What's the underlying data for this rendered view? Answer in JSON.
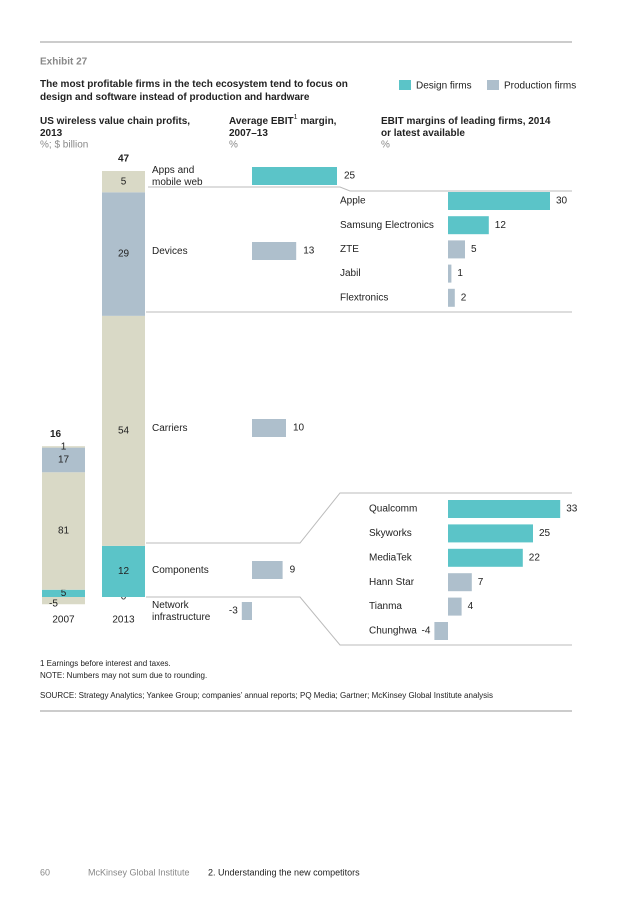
{
  "exhibit": "Exhibit 27",
  "title": [
    "The most profitable firms in the tech ecosystem tend to focus on",
    "design and software instead of production and hardware"
  ],
  "legend": [
    {
      "name": "Design firms",
      "color": "#5bc4c8"
    },
    {
      "name": "Production firms",
      "color": "#aebfcc"
    }
  ],
  "profits": {
    "heading": [
      "US wireless value chain profits,",
      "2013"
    ],
    "unit": "%; $ billion",
    "segments": [
      [
        "Apps and",
        "mobile web"
      ],
      [
        "Devices"
      ],
      [
        "Carriers"
      ],
      [
        "Components"
      ],
      [
        "Network",
        "infrastructure"
      ]
    ],
    "colors": [
      "#d9d9c6",
      "#aebfcc",
      "#d9d9c6",
      "#5bc4c8",
      "#d9d9c6"
    ],
    "years": [
      {
        "label": "2007",
        "total": 16,
        "values": [
          1,
          17,
          81,
          5,
          -5
        ]
      },
      {
        "label": "2013",
        "total": 47,
        "values": [
          5,
          29,
          54,
          12,
          0
        ]
      }
    ]
  },
  "margins": {
    "heading": [
      "Average EBIT",
      "1",
      " margin,",
      "2007–13"
    ],
    "unit": "%",
    "values": [
      25,
      13,
      10,
      9,
      -3
    ],
    "colors": [
      "#5bc4c8",
      "#aebfcc",
      "#aebfcc",
      "#aebfcc",
      "#aebfcc"
    ]
  },
  "leaders": {
    "heading": [
      "EBIT margins of leading firms, 2014",
      "or latest available"
    ],
    "unit": "%",
    "groups": [
      {
        "names": [
          "Apple",
          "Samsung Electronics",
          "ZTE",
          "Jabil",
          "Flextronics"
        ],
        "values": [
          30,
          12,
          5,
          1,
          2
        ],
        "colors": [
          "#5bc4c8",
          "#5bc4c8",
          "#aebfcc",
          "#aebfcc",
          "#aebfcc"
        ]
      },
      {
        "names": [
          "Qualcomm",
          "Skyworks",
          "MediaTek",
          "Hann Star",
          "Tianma",
          "Chunghwa"
        ],
        "values": [
          33,
          25,
          22,
          7,
          4,
          -4
        ],
        "colors": [
          "#5bc4c8",
          "#5bc4c8",
          "#5bc4c8",
          "#aebfcc",
          "#aebfcc",
          "#aebfcc"
        ]
      }
    ]
  },
  "notes": [
    "1   Earnings before interest and taxes.",
    "NOTE: Numbers may not sum due to rounding."
  ],
  "source": "SOURCE: Strategy Analytics; Yankee Group; companies’ annual reports; PQ Media; Gartner; McKinsey Global Institute analysis",
  "footer": {
    "page": "60",
    "publisher": "McKinsey Global Institute",
    "section": "2. Understanding the new competitors"
  }
}
